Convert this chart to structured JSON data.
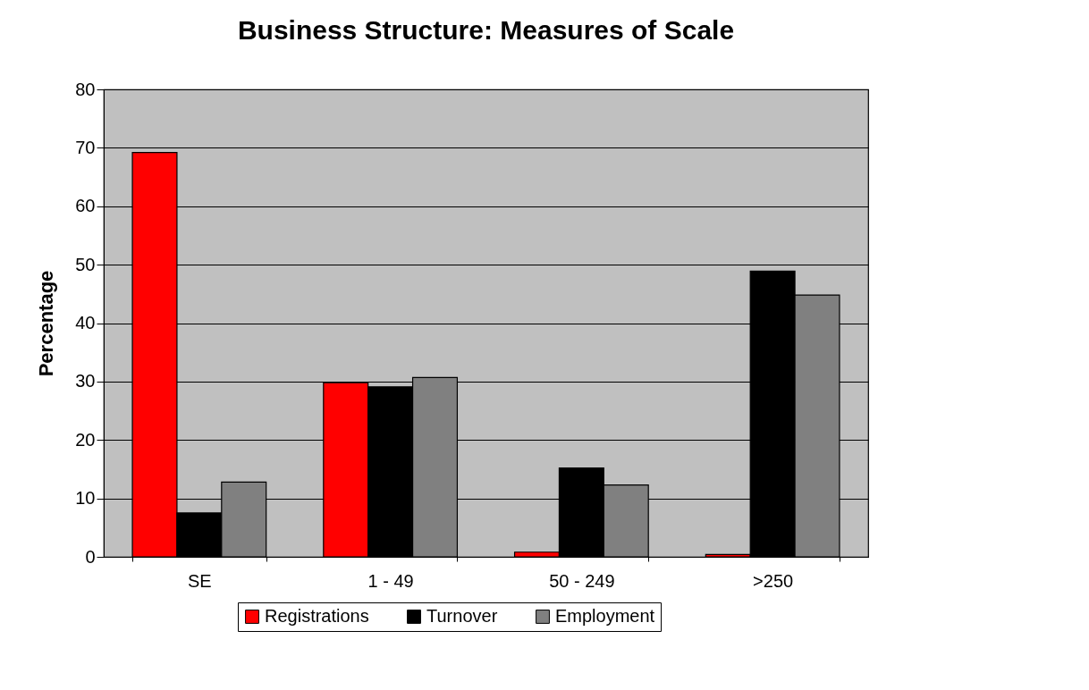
{
  "chart_data": {
    "type": "bar",
    "title": "Business Structure: Measures of Scale",
    "ylabel": "Percentage",
    "categories": [
      "SE",
      "1 - 49",
      "50 - 249",
      ">250"
    ],
    "series": [
      {
        "name": "Registrations",
        "color": "#ff0000",
        "values": [
          69.2,
          29.8,
          0.8,
          0.4
        ]
      },
      {
        "name": "Turnover",
        "color": "#000000",
        "values": [
          7.5,
          29.1,
          15.2,
          48.9
        ]
      },
      {
        "name": "Employment",
        "color": "#808080",
        "values": [
          12.8,
          30.7,
          12.3,
          44.8
        ]
      }
    ],
    "ylim": [
      0,
      80
    ],
    "yticks": [
      0,
      10,
      20,
      30,
      40,
      50,
      60,
      70,
      80
    ],
    "grid": "y",
    "legend": "bottom"
  }
}
